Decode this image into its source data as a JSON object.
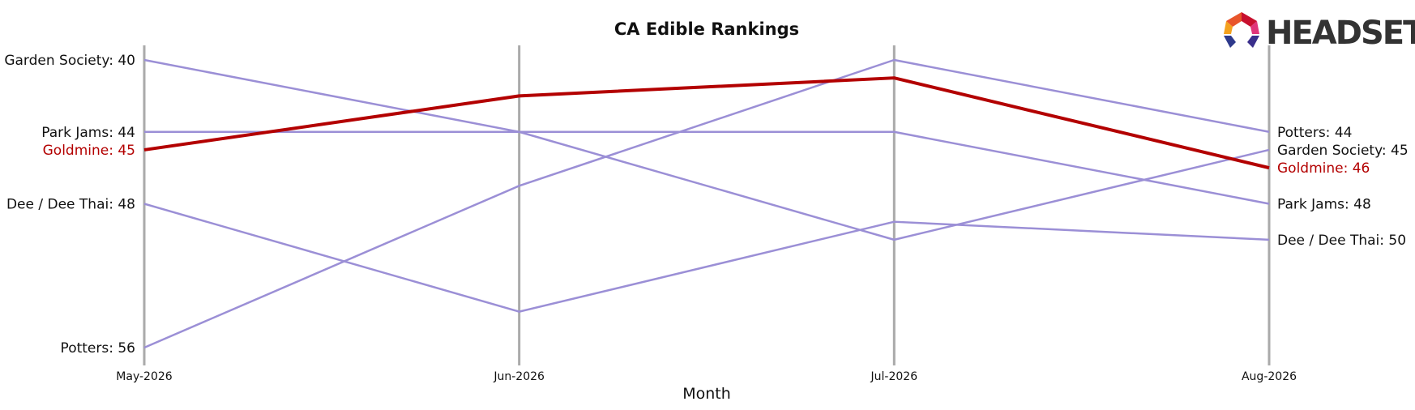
{
  "chart_data": {
    "type": "line",
    "title": "CA Edible Rankings",
    "xlabel": "Month",
    "ylabel": "",
    "x": [
      "May-2026",
      "Jun-2026",
      "Jul-2026",
      "Aug-2026"
    ],
    "y_inverted": true,
    "ylim": [
      40,
      56
    ],
    "grid": "vertical lines at each month",
    "legend": "none; series labeled at left and right ends",
    "highlight_series": "Goldmine",
    "colors": {
      "highlight": "#b30000",
      "other": "#9b8fd6",
      "gridline": "#aaaaaa"
    },
    "series": [
      {
        "name": "Garden Society",
        "values": [
          40,
          44,
          50,
          45
        ],
        "start_label": "Garden Society: 40",
        "end_label": "Garden Society: 45",
        "highlight": false
      },
      {
        "name": "Park Jams",
        "values": [
          44,
          44,
          44,
          48
        ],
        "start_label": "Park Jams: 44",
        "end_label": "Park Jams: 48",
        "highlight": false
      },
      {
        "name": "Goldmine",
        "values": [
          45,
          42,
          41,
          46
        ],
        "start_label": "Goldmine: 45",
        "end_label": "Goldmine: 46",
        "highlight": true
      },
      {
        "name": "Dee / Dee Thai",
        "values": [
          48,
          54,
          49,
          50
        ],
        "start_label": "Dee / Dee Thai: 48",
        "end_label": "Dee / Dee Thai: 50",
        "highlight": false
      },
      {
        "name": "Potters",
        "values": [
          56,
          47,
          40,
          44
        ],
        "start_label": "Potters: 56",
        "end_label": "Potters: 44",
        "highlight": false
      }
    ]
  },
  "logo": {
    "text": "HEADSET",
    "icon": "headset-logo-icon"
  }
}
